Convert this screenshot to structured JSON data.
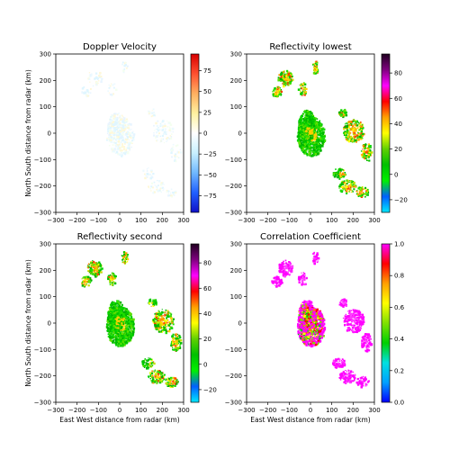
{
  "chart_data": [
    {
      "type": "heatmap",
      "title": "Doppler Velocity",
      "xlabel": "",
      "ylabel": "North South distance from radar (km)",
      "xlim": [
        -300,
        300
      ],
      "ylim": [
        -300,
        300
      ],
      "xticks": [
        -300,
        -200,
        -100,
        0,
        100,
        200,
        300
      ],
      "yticks": [
        -300,
        -200,
        -100,
        0,
        100,
        200,
        300
      ],
      "colorbar": {
        "min": -95,
        "max": 95,
        "ticks": [
          -75,
          -50,
          -25,
          0,
          25,
          50,
          75
        ],
        "colors": [
          "#1010c8",
          "#2060ff",
          "#70b8ff",
          "#c8f0ff",
          "#ffffff",
          "#fff2a0",
          "#ffb060",
          "#ff5030",
          "#d80000"
        ]
      }
    },
    {
      "type": "heatmap",
      "title": "Reflectivity lowest",
      "xlabel": "",
      "ylabel": "",
      "xlim": [
        -300,
        300
      ],
      "ylim": [
        -300,
        300
      ],
      "xticks": [
        -300,
        -200,
        -100,
        0,
        100,
        200,
        300
      ],
      "yticks": [
        -300,
        -200,
        -100,
        0,
        100,
        200,
        300
      ],
      "colorbar": {
        "min": -30,
        "max": 95,
        "ticks": [
          -20,
          0,
          20,
          40,
          60,
          80
        ],
        "colors": [
          "#00e8ff",
          "#0060ff",
          "#00f000",
          "#00c000",
          "#60d000",
          "#ffff00",
          "#ffa000",
          "#ff0000",
          "#ff00ff",
          "#800080",
          "#200020"
        ]
      }
    },
    {
      "type": "heatmap",
      "title": "Reflectivity second",
      "xlabel": "East West distance from radar (km)",
      "ylabel": "North South distance from radar (km)",
      "xlim": [
        -300,
        300
      ],
      "ylim": [
        -300,
        300
      ],
      "xticks": [
        -300,
        -200,
        -100,
        0,
        100,
        200,
        300
      ],
      "yticks": [
        -300,
        -200,
        -100,
        0,
        100,
        200,
        300
      ],
      "colorbar": {
        "min": -30,
        "max": 95,
        "ticks": [
          -20,
          0,
          20,
          40,
          60,
          80
        ],
        "colors": [
          "#00e8ff",
          "#0060ff",
          "#00f000",
          "#00c000",
          "#60d000",
          "#ffff00",
          "#ffa000",
          "#ff0000",
          "#ff00ff",
          "#800080",
          "#200020"
        ]
      }
    },
    {
      "type": "heatmap",
      "title": "Correlation Coefficient",
      "xlabel": "East West distance from radar (km)",
      "ylabel": "",
      "xlim": [
        -300,
        300
      ],
      "ylim": [
        -300,
        300
      ],
      "xticks": [
        -300,
        -200,
        -100,
        0,
        100,
        200,
        300
      ],
      "yticks": [
        -300,
        -200,
        -100,
        0,
        100,
        200,
        300
      ],
      "colorbar": {
        "min": 0.0,
        "max": 1.0,
        "ticks": [
          0.0,
          0.2,
          0.4,
          0.6,
          0.8,
          1.0
        ],
        "colors": [
          "#0000ff",
          "#00a0ff",
          "#00e0e0",
          "#00d000",
          "#80e000",
          "#ffff00",
          "#ffa000",
          "#ff0000",
          "#ff00ff"
        ]
      }
    }
  ]
}
